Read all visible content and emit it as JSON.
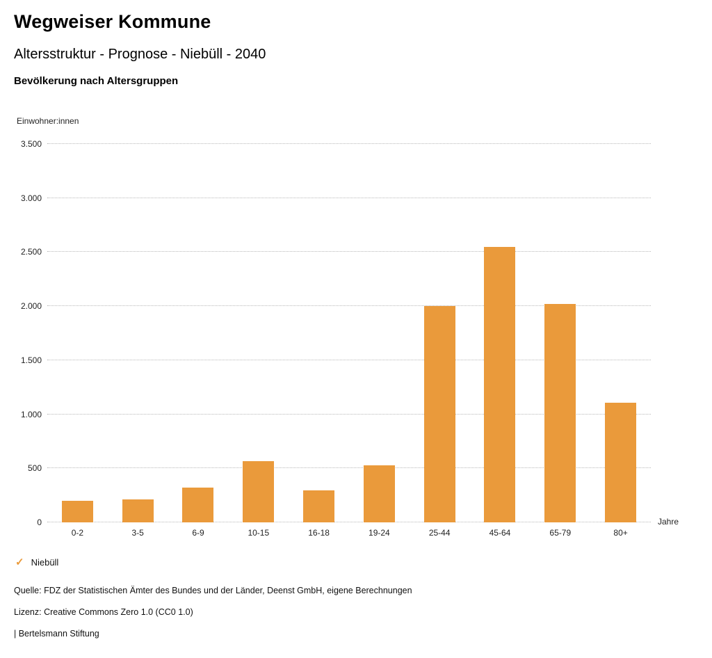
{
  "header": {
    "title": "Wegweiser Kommune",
    "subtitle": "Altersstruktur - Prognose - Niebüll - 2040",
    "chart_heading": "Bevölkerung nach Altersgruppen"
  },
  "chart_data": {
    "type": "bar",
    "title": "Bevölkerung nach Altersgruppen",
    "ylabel": "Einwohner:innen",
    "xlabel": "Jahre",
    "categories": [
      "0-2",
      "3-5",
      "6-9",
      "10-15",
      "16-18",
      "19-24",
      "25-44",
      "45-64",
      "65-79",
      "80+"
    ],
    "values": [
      200,
      215,
      320,
      565,
      295,
      525,
      2000,
      2545,
      2020,
      1105
    ],
    "ylim": [
      0,
      3500
    ],
    "yticks": [
      {
        "value": 0,
        "label": "0"
      },
      {
        "value": 500,
        "label": "500"
      },
      {
        "value": 1000,
        "label": "1.000"
      },
      {
        "value": 1500,
        "label": "1.500"
      },
      {
        "value": 2000,
        "label": "2.000"
      },
      {
        "value": 2500,
        "label": "2.500"
      },
      {
        "value": 3000,
        "label": "3.000"
      },
      {
        "value": 3500,
        "label": "3.500"
      }
    ],
    "grid": "horizontal-dotted",
    "bar_color": "#EA9A3B",
    "legend_position": "bottom-left",
    "legend": [
      {
        "label": "Niebüll",
        "color": "#EA9A3B",
        "marker_glyph": "✓"
      }
    ]
  },
  "footer": {
    "source": "Quelle: FDZ der Statistischen Ämter des Bundes und der Länder, Deenst GmbH, eigene Berechnungen",
    "license": "Lizenz: Creative Commons Zero 1.0 (CC0 1.0)",
    "attribution": "| Bertelsmann Stiftung"
  }
}
